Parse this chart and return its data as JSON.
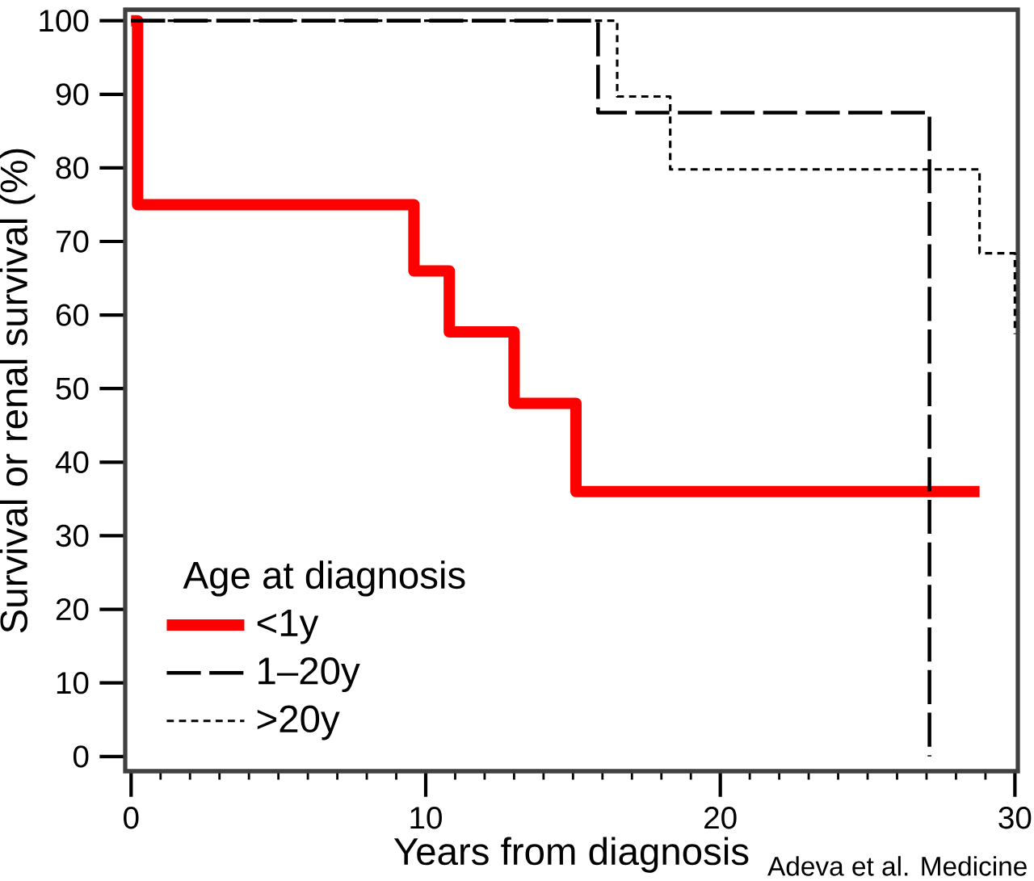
{
  "chart_data": {
    "type": "step",
    "xlabel": "Years from diagnosis",
    "ylabel": "Survival or renal survival (%)",
    "legend_title": "Age at diagnosis",
    "annotations": [
      "Adeva et al. Medicine"
    ],
    "xlim": [
      -0.2,
      30.1
    ],
    "ylim": [
      -2,
      101.5
    ],
    "xticks": [
      0,
      10,
      20,
      30
    ],
    "yticks": [
      0,
      10,
      20,
      30,
      40,
      50,
      60,
      70,
      80,
      90,
      100
    ],
    "legend": "bottom left",
    "series": [
      {
        "name": "<1y",
        "color": "#ff0000",
        "line_style": "solid",
        "x": [
          0,
          0.22,
          9.6,
          10.8,
          13.0,
          15.1,
          28.8
        ],
        "values": [
          100,
          75,
          66,
          57.7,
          48,
          36,
          36
        ]
      },
      {
        "name": "1–20y",
        "color": "#000000",
        "line_style": "dashed",
        "x": [
          0,
          15.85,
          27.1
        ],
        "values": [
          100,
          87.5,
          0
        ]
      },
      {
        "name": ">20y",
        "color": "#000000",
        "line_style": "dotted",
        "x": [
          0,
          16.5,
          18.3,
          28.8,
          30
        ],
        "values": [
          100,
          89.7,
          79.8,
          68.4,
          57.4
        ]
      }
    ]
  }
}
